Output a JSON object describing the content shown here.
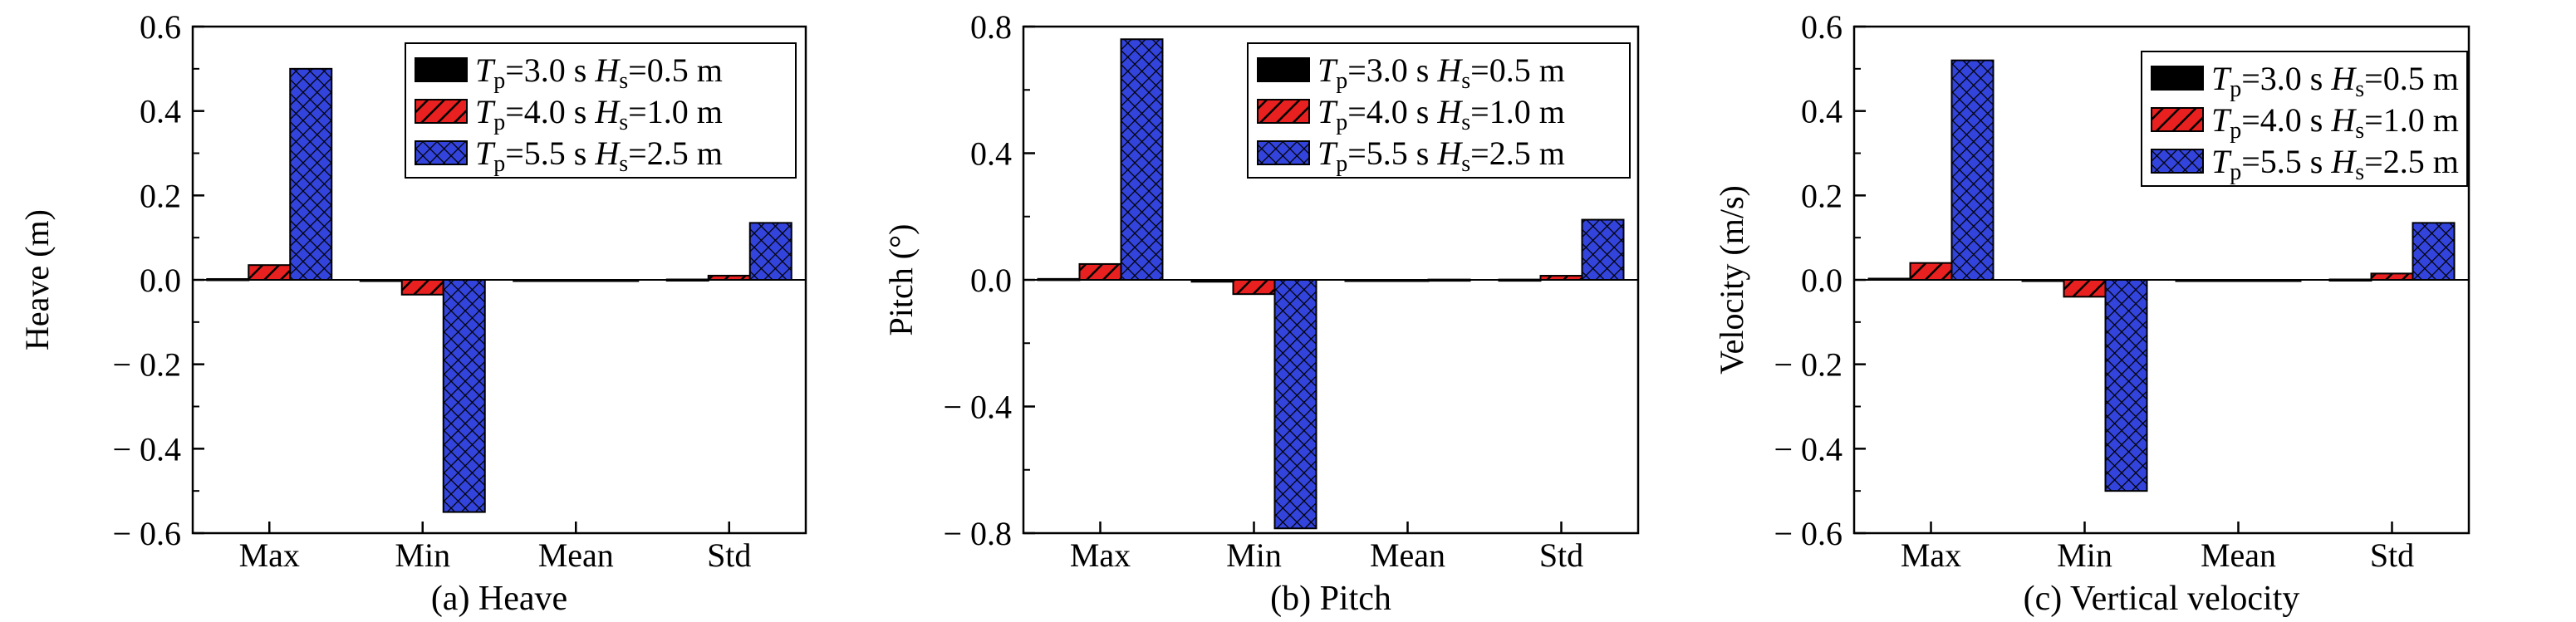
{
  "legend": [
    {
      "T_label": "T",
      "T_sub": "p",
      "T_val": "=3.0 s ",
      "H_label": "H",
      "H_sub": "s",
      "H_val": "=0.5 m"
    },
    {
      "T_label": "T",
      "T_sub": "p",
      "T_val": "=4.0 s ",
      "H_label": "H",
      "H_sub": "s",
      "H_val": "=1.0 m"
    },
    {
      "T_label": "T",
      "T_sub": "p",
      "T_val": "=5.5 s ",
      "H_label": "H",
      "H_sub": "s",
      "H_val": "=2.5 m"
    }
  ],
  "series_style": [
    {
      "color": "#000000",
      "pattern": "solid"
    },
    {
      "color": "#e82020",
      "pattern": "diagonal-hatch"
    },
    {
      "color": "#3344dd",
      "pattern": "crosshatch"
    }
  ],
  "chart_data": [
    {
      "type": "bar",
      "caption": "(a) Heave",
      "ylabel": "Heave (m)",
      "categories": [
        "Max",
        "Min",
        "Mean",
        "Std"
      ],
      "ylim": [
        -0.6,
        0.6
      ],
      "yticks": [
        -0.6,
        -0.4,
        -0.2,
        0.0,
        0.2,
        0.4,
        0.6
      ],
      "ytick_labels": [
        "− 0.6",
        "− 0.4",
        "− 0.2",
        "0.0",
        "0.2",
        "0.4",
        "0.6"
      ],
      "series": [
        {
          "values": [
            0.002,
            -0.003,
            0.0,
            0.001
          ]
        },
        {
          "values": [
            0.035,
            -0.035,
            -0.001,
            0.01
          ]
        },
        {
          "values": [
            0.5,
            -0.55,
            -0.002,
            0.135
          ]
        }
      ]
    },
    {
      "type": "bar",
      "caption": "(b) Pitch",
      "ylabel": "Pitch (°)",
      "categories": [
        "Max",
        "Min",
        "Mean",
        "Std"
      ],
      "ylim": [
        -0.8,
        0.8
      ],
      "yticks": [
        -0.8,
        -0.4,
        0.0,
        0.4,
        0.8
      ],
      "ytick_labels": [
        "− 0.8",
        "− 0.4",
        "0.0",
        "0.4",
        "0.8"
      ],
      "series": [
        {
          "values": [
            0.003,
            -0.006,
            0.0,
            0.001
          ]
        },
        {
          "values": [
            0.05,
            -0.045,
            0.0,
            0.013
          ]
        },
        {
          "values": [
            0.76,
            -0.785,
            0.001,
            0.19
          ]
        }
      ]
    },
    {
      "type": "bar",
      "caption": "(c) Vertical velocity",
      "ylabel": "Velocity (m/s)",
      "categories": [
        "Max",
        "Min",
        "Mean",
        "Std"
      ],
      "ylim": [
        -0.6,
        0.6
      ],
      "yticks": [
        -0.6,
        -0.4,
        -0.2,
        0.0,
        0.2,
        0.4,
        0.6
      ],
      "ytick_labels": [
        "− 0.6",
        "− 0.4",
        "− 0.2",
        "0.0",
        "0.2",
        "0.4",
        "0.6"
      ],
      "series": [
        {
          "values": [
            0.003,
            -0.003,
            0.0,
            0.001
          ]
        },
        {
          "values": [
            0.04,
            -0.04,
            0.0,
            0.015
          ]
        },
        {
          "values": [
            0.52,
            -0.5,
            0.0,
            0.135
          ]
        }
      ]
    }
  ]
}
